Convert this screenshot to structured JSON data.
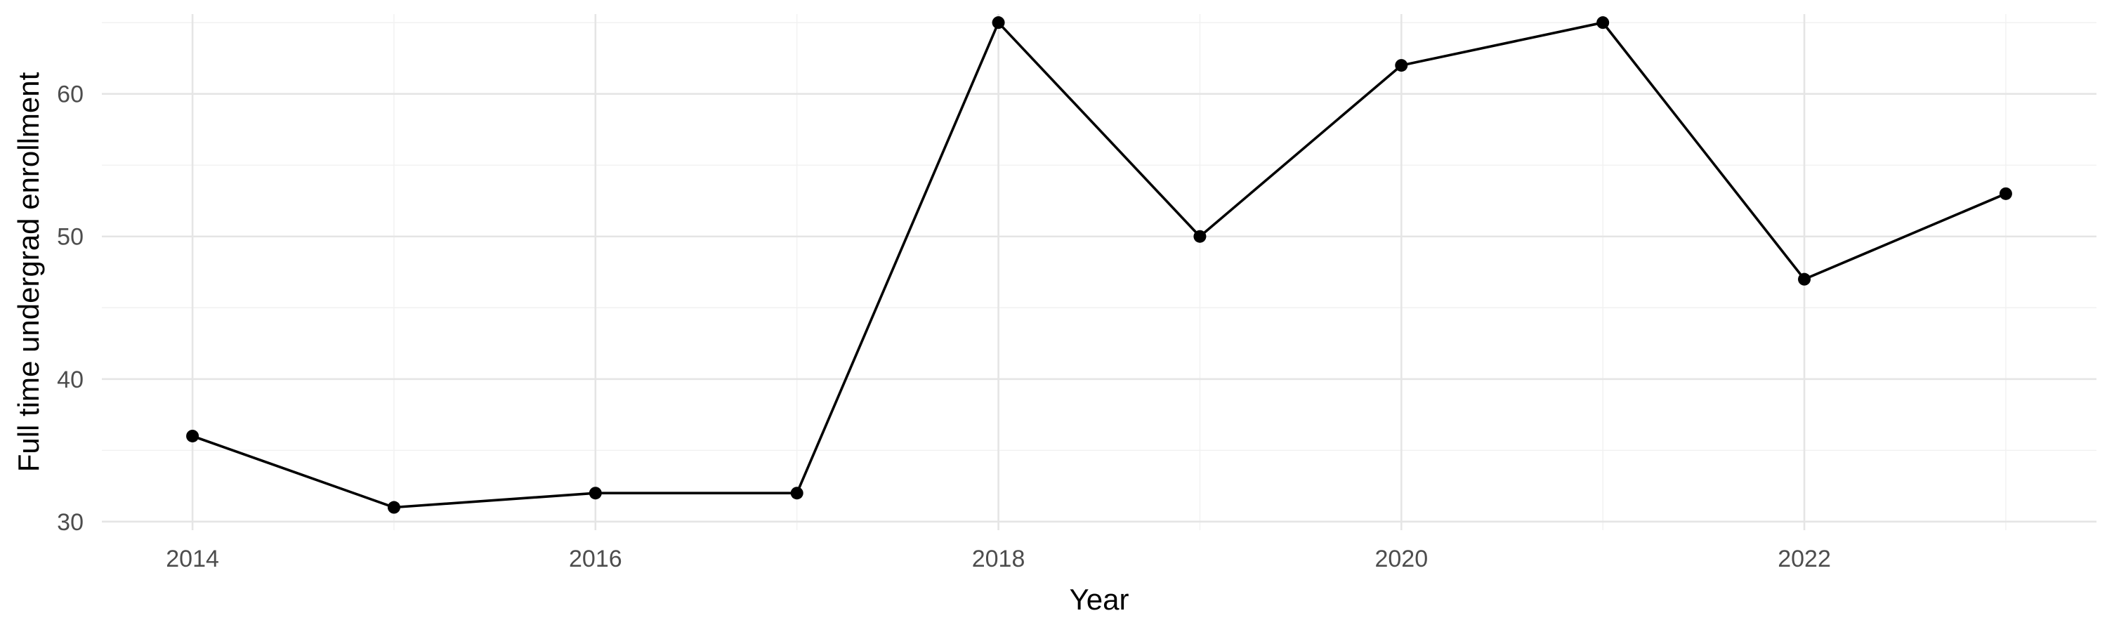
{
  "chart_data": {
    "type": "line",
    "title": "",
    "xlabel": "Year",
    "ylabel": "Full time undergrad enrollment",
    "x": [
      2014,
      2015,
      2016,
      2017,
      2018,
      2019,
      2020,
      2021,
      2022,
      2023
    ],
    "series": [
      {
        "values": [
          36,
          31,
          32,
          32,
          65,
          50,
          62,
          65,
          47,
          53
        ]
      }
    ],
    "xlim": [
      2013.55,
      2023.45
    ],
    "ylim": [
      29.4,
      65.6
    ],
    "x_ticks": [
      2014,
      2016,
      2018,
      2020,
      2022
    ],
    "x_tick_labels": [
      "2014",
      "2016",
      "2018",
      "2020",
      "2022"
    ],
    "y_ticks": [
      30,
      40,
      50,
      60
    ],
    "y_tick_labels": [
      "30",
      "40",
      "50",
      "60"
    ],
    "grid": true,
    "legend": "none",
    "colors": {
      "line": "#000000",
      "point": "#000000",
      "grid": "#e5e5e5",
      "background": "#ffffff"
    }
  }
}
